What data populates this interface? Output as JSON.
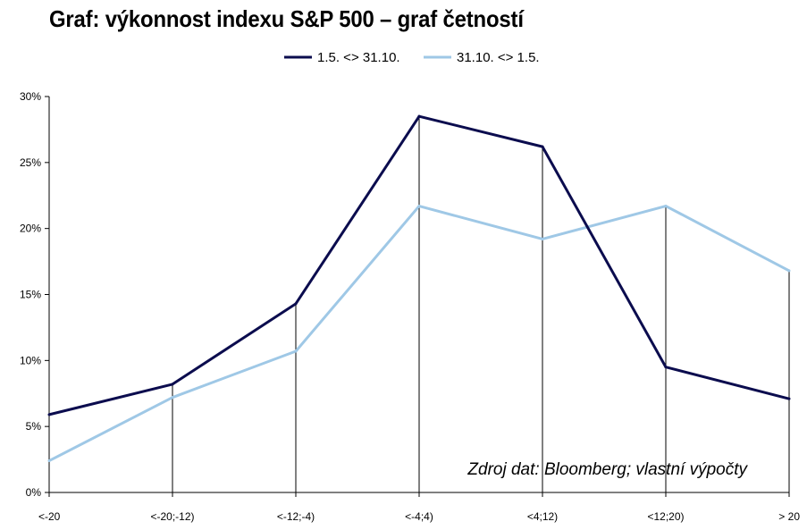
{
  "title": "Graf: výkonnost indexu S&P 500 – graf četností",
  "chart_data": {
    "type": "line",
    "categories": [
      "<-20",
      "<-20;-12)",
      "<-12;-4)",
      "<-4;4)",
      "<4;12)",
      "<12;20)",
      "> 20"
    ],
    "series": [
      {
        "name": "1.5. <> 31.10.",
        "color": "#0b0c4e",
        "values": [
          5.9,
          8.2,
          14.3,
          28.5,
          26.2,
          9.5,
          7.1
        ]
      },
      {
        "name": "31.10. <> 1.5.",
        "color": "#9fc8e6",
        "values": [
          2.4,
          7.2,
          10.7,
          21.7,
          19.2,
          21.7,
          16.8
        ]
      }
    ],
    "yticks": [
      "0%",
      "5%",
      "10%",
      "15%",
      "20%",
      "25%",
      "30%"
    ],
    "ylim": [
      0,
      30
    ],
    "legend_position": "top",
    "annotation": "Zdroj dat: Bloomberg; vlastní výpočty",
    "grid": false,
    "drop_lines": true
  }
}
